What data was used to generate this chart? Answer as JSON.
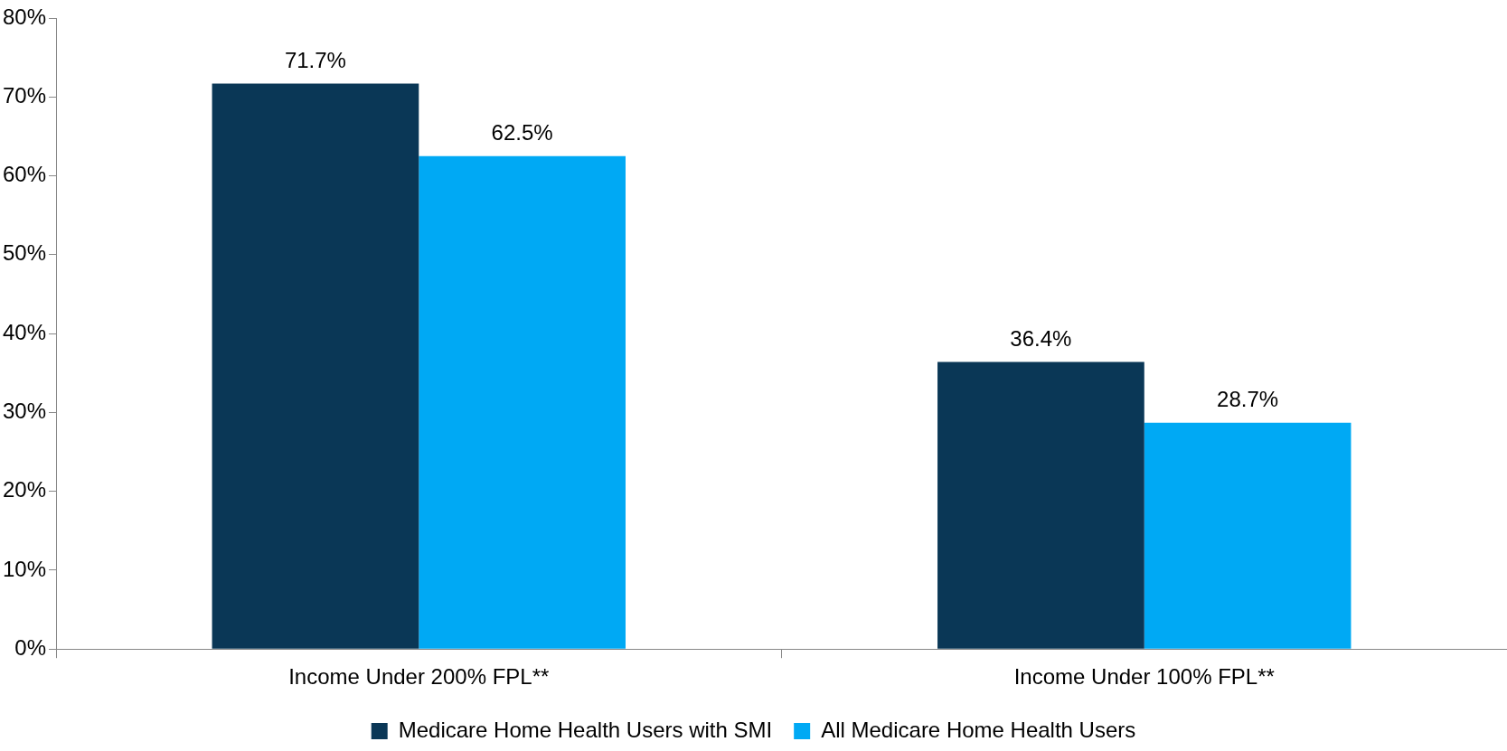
{
  "chart_data": {
    "type": "bar",
    "categories": [
      "Income Under 200% FPL**",
      "Income Under 100% FPL**"
    ],
    "series": [
      {
        "name": "Medicare Home Health Users with SMI",
        "color": "#0a3756",
        "values": [
          71.7,
          36.4
        ],
        "value_labels": [
          "71.7%",
          "36.4%"
        ]
      },
      {
        "name": "All Medicare Home Health Users",
        "color": "#00a9f4",
        "values": [
          62.5,
          28.7
        ],
        "value_labels": [
          "62.5%",
          "28.7%"
        ]
      }
    ],
    "ylim": [
      0,
      80
    ],
    "yticks": [
      {
        "value": 0,
        "label": "0%"
      },
      {
        "value": 10,
        "label": "10%"
      },
      {
        "value": 20,
        "label": "20%"
      },
      {
        "value": 30,
        "label": "30%"
      },
      {
        "value": 40,
        "label": "40%"
      },
      {
        "value": 50,
        "label": "50%"
      },
      {
        "value": 60,
        "label": "60%"
      },
      {
        "value": 70,
        "label": "70%"
      },
      {
        "value": 80,
        "label": "80%"
      }
    ],
    "grid": false,
    "legend": "bottom"
  }
}
